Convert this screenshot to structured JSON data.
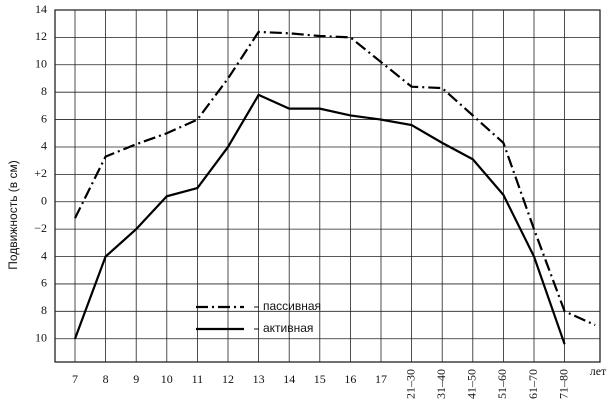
{
  "chart_data": {
    "type": "line",
    "y_label": "Подвижность (в см)",
    "x_unit": "лет",
    "categories": [
      "7",
      "8",
      "9",
      "10",
      "11",
      "12",
      "13",
      "14",
      "15",
      "16",
      "17",
      "21–30",
      "31–40",
      "41–50",
      "51–60",
      "61–70",
      "71–80",
      null
    ],
    "series": [
      {
        "name": "пассивная",
        "color": "#000000",
        "style": "dash-dot",
        "values": [
          -1.2,
          3.3,
          4.2,
          5,
          6,
          9,
          12.4,
          12.3,
          12.1,
          12,
          10.2,
          8.4,
          8.3,
          6.3,
          4.3,
          -2,
          -8,
          -9
        ]
      },
      {
        "name": "активная",
        "color": "#000000",
        "style": "solid",
        "values": [
          -10,
          -4,
          -2,
          0.4,
          1,
          4,
          7.8,
          6.8,
          6.8,
          6.3,
          6,
          5.6,
          4.3,
          3.1,
          0.5,
          -4,
          -10.4,
          null
        ]
      }
    ],
    "ylim": [
      -11.7,
      14
    ],
    "yticks": [
      14,
      12,
      10,
      8,
      6,
      4,
      {
        "value": 2,
        "label": "+2"
      },
      0,
      {
        "value": -2,
        "label": "−2"
      },
      {
        "value": -4,
        "label": "4"
      },
      {
        "value": -6,
        "label": "6"
      },
      {
        "value": -8,
        "label": "8"
      },
      {
        "value": -10,
        "label": "10"
      }
    ],
    "grid": true
  }
}
